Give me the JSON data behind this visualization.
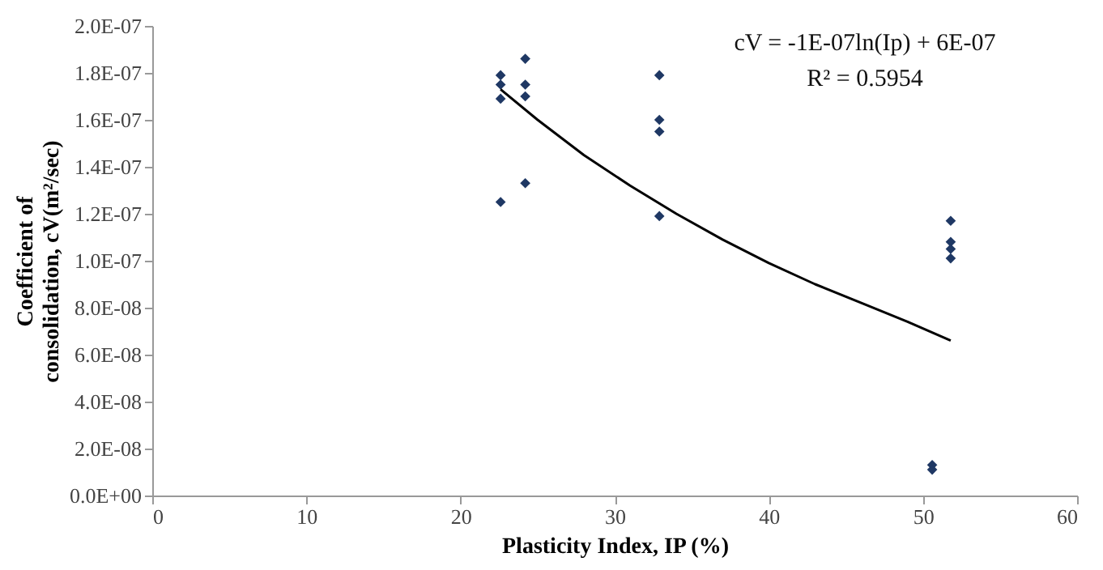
{
  "chart_data": {
    "type": "scatter",
    "xlabel": "Plasticity Index, IP (%)",
    "ylabel": "Coefficient of\nconsolidation, cV(m²/sec)",
    "annotations": [
      "cV = -1E-07ln(Ip) + 6E-07",
      "R² = 0.5954"
    ],
    "series": [
      {
        "color": "#1f3864",
        "marker": "diamond",
        "x": [
          22.6,
          22.6,
          22.6,
          22.6,
          24.2,
          24.2,
          24.2,
          24.2,
          32.9,
          32.9,
          32.9,
          32.9,
          50.6,
          50.6,
          51.8,
          51.8,
          51.8,
          51.8
        ],
        "values": [
          1.79e-07,
          1.75e-07,
          1.69e-07,
          1.25e-07,
          1.86e-07,
          1.75e-07,
          1.7e-07,
          1.33e-07,
          1.79e-07,
          1.6e-07,
          1.55e-07,
          1.19e-07,
          1.3e-08,
          1.1e-08,
          1.17e-07,
          1.08e-07,
          1.05e-07,
          1.01e-07
        ]
      },
      {
        "type": "line",
        "color": "#000000",
        "marker": "none",
        "line_style": "solid",
        "x": [
          22.6,
          25,
          28,
          31,
          34,
          37,
          40,
          43,
          46,
          49,
          51.8
        ],
        "values": [
          1.73e-07,
          1.6e-07,
          1.45e-07,
          1.32e-07,
          1.2e-07,
          1.09e-07,
          9.9e-08,
          9e-08,
          8.2e-08,
          7.4e-08,
          6.6e-08
        ]
      }
    ],
    "xlim": [
      0,
      60
    ],
    "xticks": [
      0,
      10,
      20,
      30,
      40,
      50,
      60
    ],
    "ylim": [
      0,
      2e-07
    ],
    "yticks": [
      {
        "value": 0,
        "label": "0.0E+00"
      },
      {
        "value": 2e-08,
        "label": "2.0E-08"
      },
      {
        "value": 4e-08,
        "label": "4.0E-08"
      },
      {
        "value": 6e-08,
        "label": "6.0E-08"
      },
      {
        "value": 8e-08,
        "label": "8.0E-08"
      },
      {
        "value": 1e-07,
        "label": "1.0E-07"
      },
      {
        "value": 1.2e-07,
        "label": "1.2E-07"
      },
      {
        "value": 1.4e-07,
        "label": "1.4E-07"
      },
      {
        "value": 1.6e-07,
        "label": "1.6E-07"
      },
      {
        "value": 1.8e-07,
        "label": "1.8E-07"
      },
      {
        "value": 2e-07,
        "label": "2.0E-07"
      }
    ],
    "grid": false
  }
}
